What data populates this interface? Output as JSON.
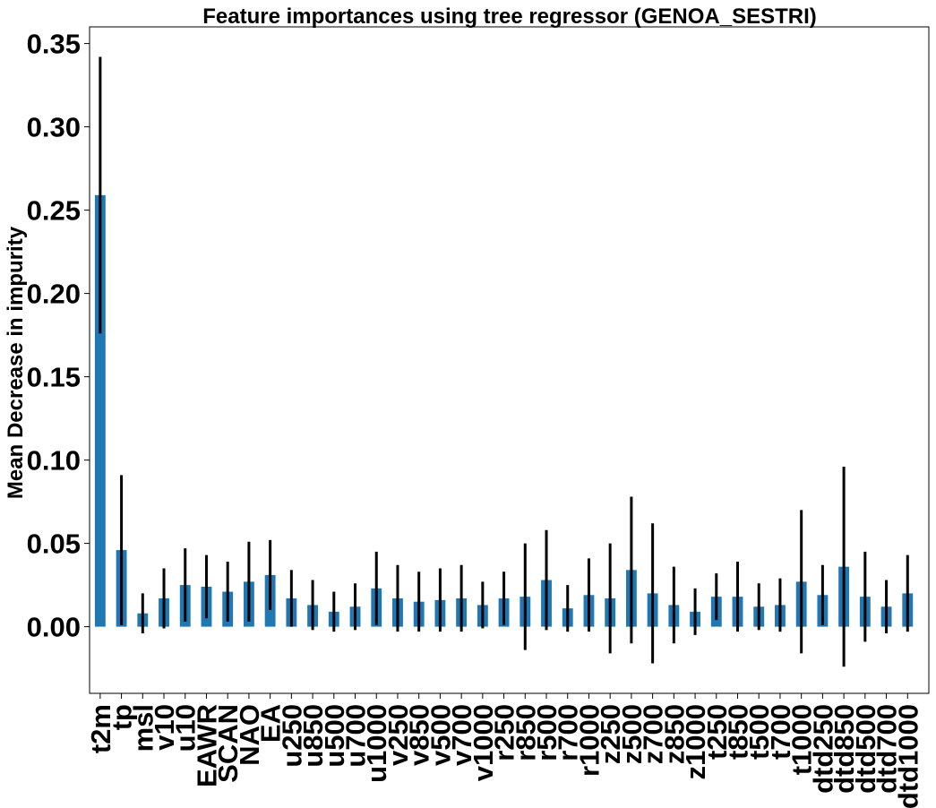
{
  "chart_data": {
    "type": "bar",
    "title": "Feature importances using tree regressor (GENOA_SESTRI)",
    "xlabel": "",
    "ylabel": "Mean Decrease in impurity",
    "ylim": [
      -0.04,
      0.36
    ],
    "yticks": [
      "0.00",
      "0.05",
      "0.10",
      "0.15",
      "0.20",
      "0.25",
      "0.30",
      "0.35"
    ],
    "grid": false,
    "bar_color": "#1f77b4",
    "error_color": "#000000",
    "categories": [
      "t2m",
      "tp",
      "msl",
      "v10",
      "u10",
      "EAWR",
      "SCAN",
      "NAO",
      "EA",
      "u250",
      "u850",
      "u500",
      "u700",
      "u1000",
      "v250",
      "v850",
      "v500",
      "v700",
      "v1000",
      "r250",
      "r850",
      "r500",
      "r700",
      "r1000",
      "z250",
      "z500",
      "z700",
      "z850",
      "z1000",
      "t250",
      "t850",
      "t500",
      "t700",
      "t1000",
      "dtd250",
      "dtd850",
      "dtd500",
      "dtd700",
      "dtd1000"
    ],
    "values": [
      0.259,
      0.046,
      0.008,
      0.017,
      0.025,
      0.024,
      0.021,
      0.027,
      0.031,
      0.017,
      0.013,
      0.009,
      0.012,
      0.023,
      0.017,
      0.015,
      0.016,
      0.017,
      0.013,
      0.017,
      0.018,
      0.028,
      0.011,
      0.019,
      0.017,
      0.034,
      0.02,
      0.013,
      0.009,
      0.018,
      0.018,
      0.012,
      0.013,
      0.027,
      0.019,
      0.036,
      0.018,
      0.012,
      0.02
    ],
    "errors": [
      0.083,
      0.045,
      0.012,
      0.018,
      0.022,
      0.019,
      0.018,
      0.024,
      0.021,
      0.017,
      0.015,
      0.012,
      0.014,
      0.022,
      0.02,
      0.018,
      0.019,
      0.02,
      0.014,
      0.016,
      0.032,
      0.03,
      0.014,
      0.022,
      0.033,
      0.044,
      0.042,
      0.023,
      0.014,
      0.014,
      0.021,
      0.014,
      0.016,
      0.043,
      0.018,
      0.06,
      0.027,
      0.016,
      0.023
    ]
  }
}
